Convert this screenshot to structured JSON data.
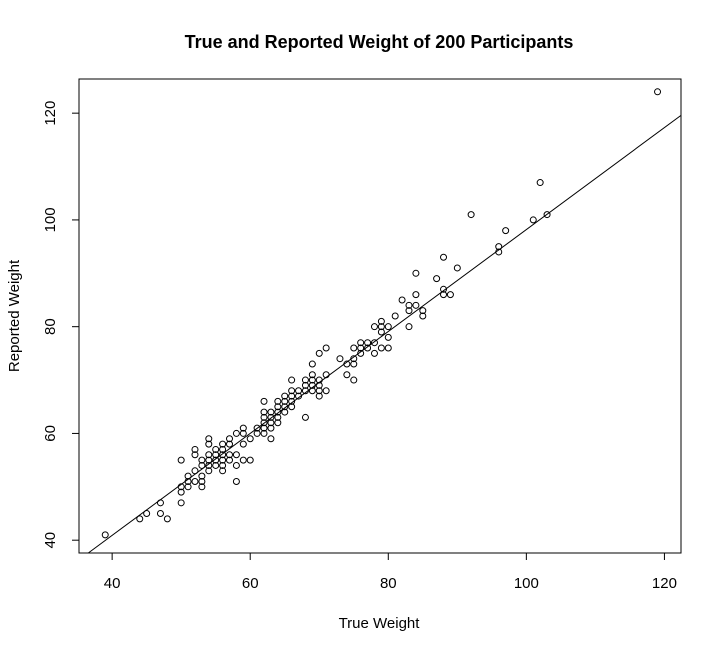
{
  "chart_data": {
    "type": "scatter",
    "title": "True and Reported Weight of 200 Participants",
    "xlabel": "True Weight",
    "ylabel": "Reported Weight",
    "xlim": [
      35.2,
      122.4
    ],
    "ylim": [
      37.6,
      126.4
    ],
    "xticks": [
      40,
      60,
      80,
      100,
      120
    ],
    "yticks": [
      40,
      60,
      80,
      100,
      120
    ],
    "grid": false,
    "legend": "none",
    "fit_line": {
      "intercept": 2.7,
      "slope": 0.955
    },
    "points": [
      [
        39,
        41
      ],
      [
        44,
        44
      ],
      [
        45,
        45
      ],
      [
        47,
        45
      ],
      [
        47,
        47
      ],
      [
        48,
        44
      ],
      [
        50,
        47
      ],
      [
        50,
        49
      ],
      [
        50,
        50
      ],
      [
        50,
        55
      ],
      [
        51,
        50
      ],
      [
        51,
        51
      ],
      [
        51,
        52
      ],
      [
        52,
        51
      ],
      [
        52,
        53
      ],
      [
        52,
        56
      ],
      [
        52,
        57
      ],
      [
        53,
        50
      ],
      [
        53,
        51
      ],
      [
        53,
        52
      ],
      [
        53,
        54
      ],
      [
        53,
        55
      ],
      [
        54,
        53
      ],
      [
        54,
        54
      ],
      [
        54,
        55
      ],
      [
        54,
        56
      ],
      [
        54,
        58
      ],
      [
        54,
        59
      ],
      [
        55,
        54
      ],
      [
        55,
        55
      ],
      [
        55,
        56
      ],
      [
        55,
        57
      ],
      [
        56,
        53
      ],
      [
        56,
        54
      ],
      [
        56,
        55
      ],
      [
        56,
        56
      ],
      [
        56,
        57
      ],
      [
        56,
        58
      ],
      [
        57,
        55
      ],
      [
        57,
        56
      ],
      [
        57,
        58
      ],
      [
        57,
        59
      ],
      [
        58,
        51
      ],
      [
        58,
        54
      ],
      [
        58,
        56
      ],
      [
        58,
        60
      ],
      [
        59,
        55
      ],
      [
        59,
        58
      ],
      [
        59,
        60
      ],
      [
        59,
        61
      ],
      [
        60,
        55
      ],
      [
        60,
        59
      ],
      [
        61,
        60
      ],
      [
        61,
        61
      ],
      [
        62,
        60
      ],
      [
        62,
        61
      ],
      [
        62,
        62
      ],
      [
        62,
        63
      ],
      [
        62,
        64
      ],
      [
        62,
        66
      ],
      [
        63,
        59
      ],
      [
        63,
        61
      ],
      [
        63,
        62
      ],
      [
        63,
        63
      ],
      [
        63,
        64
      ],
      [
        64,
        62
      ],
      [
        64,
        63
      ],
      [
        64,
        64
      ],
      [
        64,
        65
      ],
      [
        64,
        66
      ],
      [
        65,
        64
      ],
      [
        65,
        65
      ],
      [
        65,
        66
      ],
      [
        65,
        67
      ],
      [
        66,
        65
      ],
      [
        66,
        66
      ],
      [
        66,
        67
      ],
      [
        66,
        68
      ],
      [
        66,
        70
      ],
      [
        67,
        67
      ],
      [
        67,
        68
      ],
      [
        68,
        63
      ],
      [
        68,
        68
      ],
      [
        68,
        69
      ],
      [
        68,
        70
      ],
      [
        69,
        68
      ],
      [
        69,
        69
      ],
      [
        69,
        70
      ],
      [
        69,
        71
      ],
      [
        69,
        73
      ],
      [
        70,
        67
      ],
      [
        70,
        68
      ],
      [
        70,
        69
      ],
      [
        70,
        70
      ],
      [
        70,
        75
      ],
      [
        71,
        68
      ],
      [
        71,
        71
      ],
      [
        71,
        76
      ],
      [
        73,
        74
      ],
      [
        74,
        71
      ],
      [
        74,
        73
      ],
      [
        75,
        70
      ],
      [
        75,
        73
      ],
      [
        75,
        74
      ],
      [
        75,
        76
      ],
      [
        76,
        75
      ],
      [
        76,
        76
      ],
      [
        76,
        77
      ],
      [
        77,
        76
      ],
      [
        77,
        77
      ],
      [
        78,
        75
      ],
      [
        78,
        77
      ],
      [
        78,
        80
      ],
      [
        79,
        76
      ],
      [
        79,
        79
      ],
      [
        79,
        80
      ],
      [
        79,
        81
      ],
      [
        80,
        76
      ],
      [
        80,
        78
      ],
      [
        80,
        80
      ],
      [
        81,
        82
      ],
      [
        82,
        85
      ],
      [
        83,
        80
      ],
      [
        83,
        83
      ],
      [
        83,
        84
      ],
      [
        84,
        84
      ],
      [
        84,
        86
      ],
      [
        84,
        90
      ],
      [
        85,
        82
      ],
      [
        85,
        83
      ],
      [
        87,
        89
      ],
      [
        88,
        86
      ],
      [
        88,
        87
      ],
      [
        88,
        93
      ],
      [
        89,
        86
      ],
      [
        90,
        91
      ],
      [
        92,
        101
      ],
      [
        96,
        94
      ],
      [
        96,
        95
      ],
      [
        97,
        98
      ],
      [
        101,
        100
      ],
      [
        102,
        107
      ],
      [
        103,
        101
      ],
      [
        119,
        124
      ]
    ]
  }
}
